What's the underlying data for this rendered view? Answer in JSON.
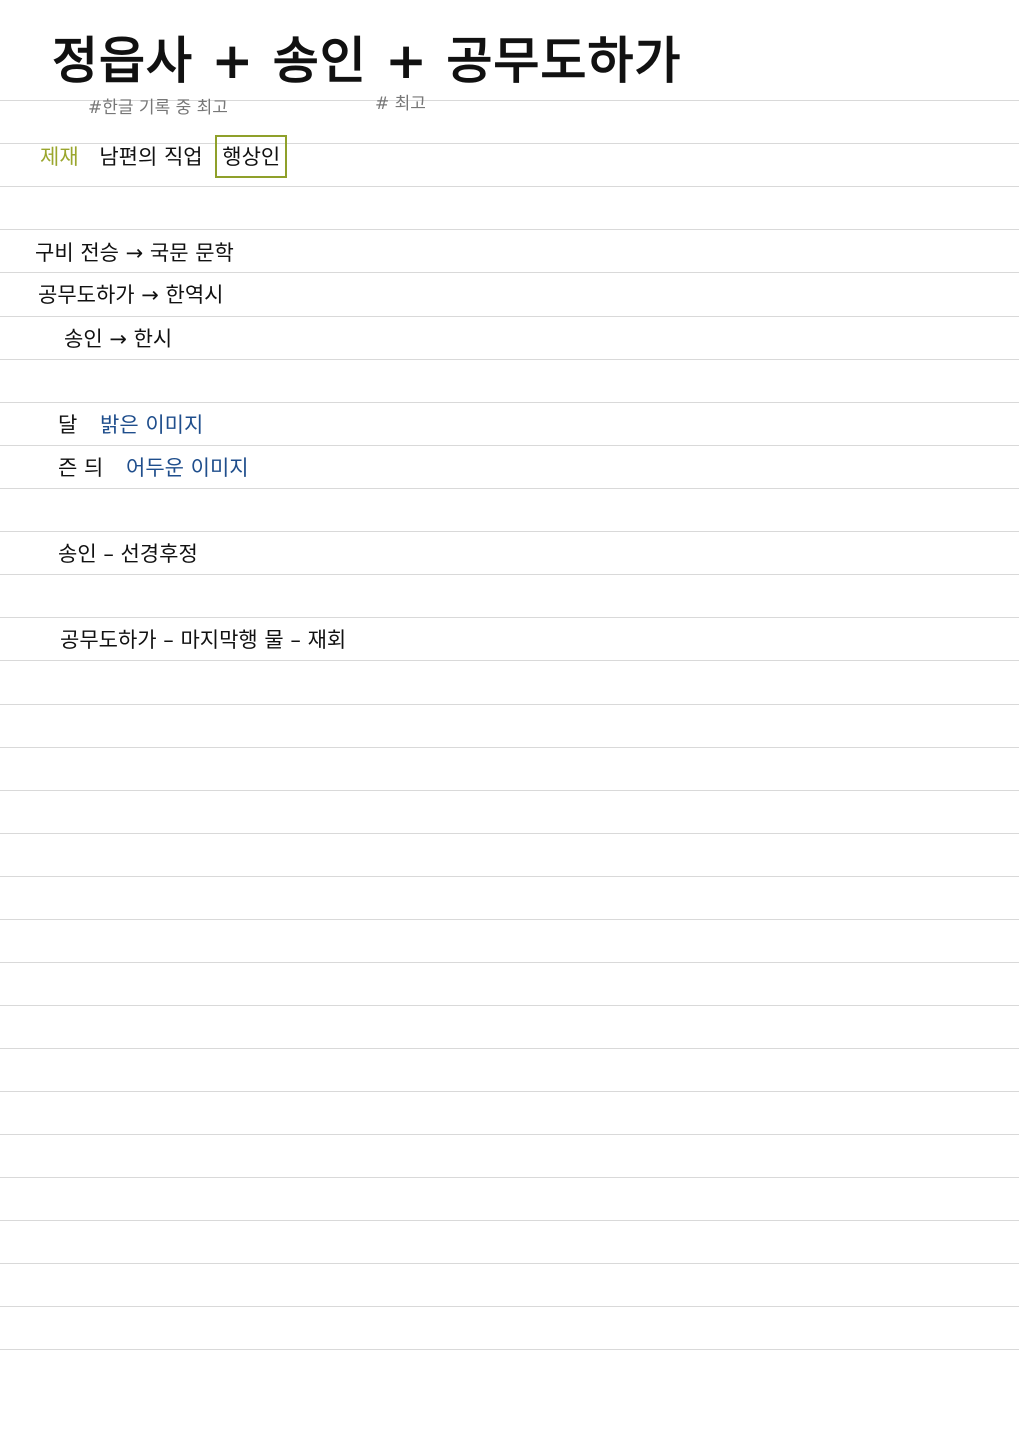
{
  "title": "정읍사 + 송인 + 공무도하가",
  "tags": {
    "tag1": "#한글 기록 중 최고",
    "tag2": "# 최고"
  },
  "subject_line": {
    "label": "제재",
    "text": "남편의 직업",
    "boxed": "행상인"
  },
  "lines": [
    "구비 전승 → 국문 문학",
    "공무도하가 → 한역시",
    "송인 → 한시"
  ],
  "imagery": [
    {
      "word": "달",
      "desc": "밝은 이미지"
    },
    {
      "word": "즌 듸",
      "desc": "어두운 이미지"
    }
  ],
  "notes": [
    "송인 – 선경후정",
    "공무도하가 – 마지막행 물 – 재회"
  ],
  "colors": {
    "ink": "#111111",
    "tag_gray": "#777777",
    "label_olive": "#9aa62e",
    "box_olive": "#8fa02a",
    "blue": "#1f4e8c",
    "rule": "#d9d9d9"
  }
}
